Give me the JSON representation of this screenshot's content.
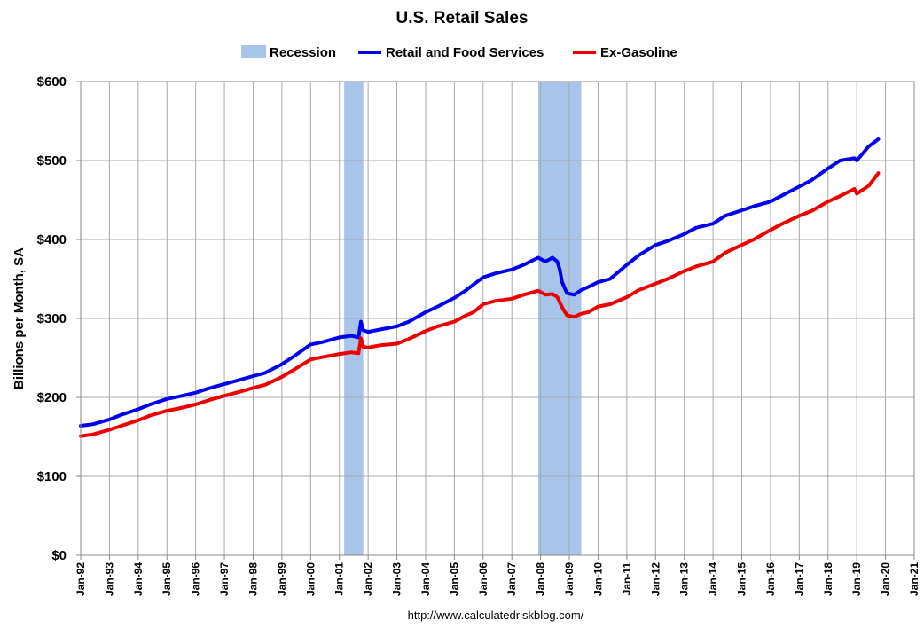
{
  "chart_data": {
    "type": "line",
    "title": "U.S. Retail Sales",
    "ylabel": "Billions per Month, SA",
    "xlabel": "",
    "ylim": [
      0,
      600
    ],
    "yticks": [
      {
        "value": 0,
        "label": "$0"
      },
      {
        "value": 100,
        "label": "$100"
      },
      {
        "value": 200,
        "label": "$200"
      },
      {
        "value": 300,
        "label": "$300"
      },
      {
        "value": 400,
        "label": "$400"
      },
      {
        "value": 500,
        "label": "$500"
      },
      {
        "value": 600,
        "label": "$600"
      }
    ],
    "xlim": [
      "1992-01",
      "2021-01"
    ],
    "xticks": [
      "Jan-92",
      "Jan-93",
      "Jan-94",
      "Jan-95",
      "Jan-96",
      "Jan-97",
      "Jan-98",
      "Jan-99",
      "Jan-00",
      "Jan-01",
      "Jan-02",
      "Jan-03",
      "Jan-04",
      "Jan-05",
      "Jan-06",
      "Jan-07",
      "Jan-08",
      "Jan-09",
      "Jan-10",
      "Jan-11",
      "Jan-12",
      "Jan-13",
      "Jan-14",
      "Jan-15",
      "Jan-16",
      "Jan-17",
      "Jan-18",
      "Jan-19",
      "Jan-20",
      "Jan-21"
    ],
    "grid": true,
    "legend_position": "top",
    "legend": [
      {
        "label": "Recession",
        "color": "#a9c4eb",
        "kind": "band"
      },
      {
        "label": "Retail and Food Services",
        "color": "#0000ee",
        "kind": "line"
      },
      {
        "label": "Ex-Gasoline",
        "color": "#ee0000",
        "kind": "line"
      }
    ],
    "recessions": [
      {
        "start": "2001-03",
        "end": "2001-11"
      },
      {
        "start": "2007-12",
        "end": "2009-06"
      }
    ],
    "series": [
      {
        "name": "Retail and Food Services",
        "color": "#0000ee",
        "points": [
          [
            "1992-01",
            164
          ],
          [
            "1992-06",
            166
          ],
          [
            "1993-01",
            172
          ],
          [
            "1993-06",
            178
          ],
          [
            "1994-01",
            185
          ],
          [
            "1994-06",
            191
          ],
          [
            "1995-01",
            198
          ],
          [
            "1995-06",
            201
          ],
          [
            "1996-01",
            206
          ],
          [
            "1996-06",
            211
          ],
          [
            "1997-01",
            217
          ],
          [
            "1997-06",
            221
          ],
          [
            "1998-01",
            227
          ],
          [
            "1998-06",
            231
          ],
          [
            "1999-01",
            242
          ],
          [
            "1999-06",
            252
          ],
          [
            "2000-01",
            267
          ],
          [
            "2000-06",
            270
          ],
          [
            "2001-01",
            276
          ],
          [
            "2001-06",
            278
          ],
          [
            "2001-09",
            276
          ],
          [
            "2001-10",
            296
          ],
          [
            "2001-11",
            285
          ],
          [
            "2002-01",
            283
          ],
          [
            "2002-06",
            286
          ],
          [
            "2003-01",
            290
          ],
          [
            "2003-06",
            296
          ],
          [
            "2004-01",
            308
          ],
          [
            "2004-06",
            315
          ],
          [
            "2005-01",
            326
          ],
          [
            "2005-06",
            336
          ],
          [
            "2005-09",
            343
          ],
          [
            "2006-01",
            352
          ],
          [
            "2006-06",
            357
          ],
          [
            "2007-01",
            362
          ],
          [
            "2007-06",
            368
          ],
          [
            "2007-12",
            377
          ],
          [
            "2008-03",
            372
          ],
          [
            "2008-06",
            377
          ],
          [
            "2008-08",
            372
          ],
          [
            "2008-09",
            362
          ],
          [
            "2008-10",
            346
          ],
          [
            "2008-12",
            332
          ],
          [
            "2009-03",
            330
          ],
          [
            "2009-06",
            336
          ],
          [
            "2009-09",
            340
          ],
          [
            "2010-01",
            346
          ],
          [
            "2010-06",
            350
          ],
          [
            "2011-01",
            368
          ],
          [
            "2011-06",
            380
          ],
          [
            "2012-01",
            393
          ],
          [
            "2012-06",
            398
          ],
          [
            "2013-01",
            407
          ],
          [
            "2013-06",
            415
          ],
          [
            "2014-01",
            420
          ],
          [
            "2014-06",
            430
          ],
          [
            "2015-01",
            437
          ],
          [
            "2015-06",
            442
          ],
          [
            "2016-01",
            448
          ],
          [
            "2016-06",
            456
          ],
          [
            "2017-01",
            467
          ],
          [
            "2017-06",
            475
          ],
          [
            "2018-01",
            490
          ],
          [
            "2018-06",
            500
          ],
          [
            "2018-12",
            503
          ],
          [
            "2019-01",
            500
          ],
          [
            "2019-06",
            518
          ],
          [
            "2019-10",
            527
          ]
        ]
      },
      {
        "name": "Ex-Gasoline",
        "color": "#ee0000",
        "points": [
          [
            "1992-01",
            151
          ],
          [
            "1992-06",
            153
          ],
          [
            "1993-01",
            159
          ],
          [
            "1993-06",
            164
          ],
          [
            "1994-01",
            171
          ],
          [
            "1994-06",
            177
          ],
          [
            "1995-01",
            183
          ],
          [
            "1995-06",
            186
          ],
          [
            "1996-01",
            191
          ],
          [
            "1996-06",
            196
          ],
          [
            "1997-01",
            202
          ],
          [
            "1997-06",
            206
          ],
          [
            "1998-01",
            212
          ],
          [
            "1998-06",
            216
          ],
          [
            "1999-01",
            226
          ],
          [
            "1999-06",
            235
          ],
          [
            "2000-01",
            248
          ],
          [
            "2000-06",
            251
          ],
          [
            "2001-01",
            255
          ],
          [
            "2001-06",
            257
          ],
          [
            "2001-09",
            256
          ],
          [
            "2001-10",
            275
          ],
          [
            "2001-11",
            264
          ],
          [
            "2002-01",
            263
          ],
          [
            "2002-06",
            266
          ],
          [
            "2003-01",
            268
          ],
          [
            "2003-06",
            274
          ],
          [
            "2004-01",
            284
          ],
          [
            "2004-06",
            290
          ],
          [
            "2005-01",
            296
          ],
          [
            "2005-06",
            304
          ],
          [
            "2005-09",
            308
          ],
          [
            "2006-01",
            318
          ],
          [
            "2006-06",
            322
          ],
          [
            "2007-01",
            325
          ],
          [
            "2007-06",
            330
          ],
          [
            "2007-12",
            335
          ],
          [
            "2008-03",
            330
          ],
          [
            "2008-06",
            331
          ],
          [
            "2008-08",
            327
          ],
          [
            "2008-10",
            314
          ],
          [
            "2008-12",
            304
          ],
          [
            "2009-03",
            302
          ],
          [
            "2009-06",
            306
          ],
          [
            "2009-09",
            308
          ],
          [
            "2010-01",
            315
          ],
          [
            "2010-06",
            318
          ],
          [
            "2011-01",
            327
          ],
          [
            "2011-06",
            336
          ],
          [
            "2012-01",
            344
          ],
          [
            "2012-06",
            350
          ],
          [
            "2013-01",
            360
          ],
          [
            "2013-06",
            366
          ],
          [
            "2014-01",
            372
          ],
          [
            "2014-06",
            383
          ],
          [
            "2015-01",
            393
          ],
          [
            "2015-06",
            400
          ],
          [
            "2016-01",
            412
          ],
          [
            "2016-06",
            420
          ],
          [
            "2017-01",
            430
          ],
          [
            "2017-06",
            436
          ],
          [
            "2018-01",
            448
          ],
          [
            "2018-06",
            455
          ],
          [
            "2018-12",
            464
          ],
          [
            "2019-01",
            458
          ],
          [
            "2019-06",
            468
          ],
          [
            "2019-10",
            484
          ]
        ]
      }
    ]
  },
  "source": "http://www.calculatedriskblog.com/"
}
